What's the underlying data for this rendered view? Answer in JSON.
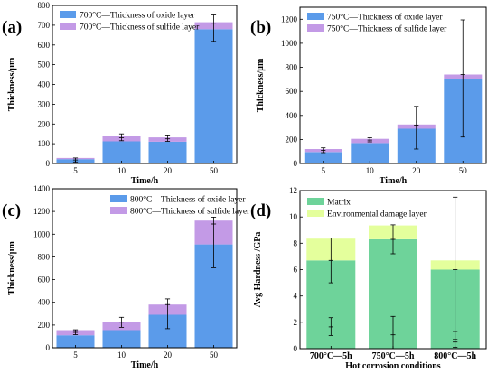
{
  "chart_data": [
    {
      "type": "bar",
      "stacked": true,
      "panel_label": "(a)",
      "categories": [
        "5",
        "10",
        "20",
        "50"
      ],
      "series": [
        {
          "name": "700°C—Thickness of oxide layer",
          "values": [
            22,
            112,
            110,
            680
          ],
          "color": "#5b9bea"
        },
        {
          "name": "700°C—Thickness of sulfide layer",
          "values": [
            6,
            25,
            22,
            35
          ],
          "color": "#c39ae6"
        }
      ],
      "error_bars": [
        {
          "center": 18,
          "low": 8,
          "high": 28
        },
        {
          "center": 130,
          "low": 115,
          "high": 150
        },
        {
          "center": 125,
          "low": 112,
          "high": 140
        },
        {
          "center": 710,
          "low": 618,
          "high": 752
        }
      ],
      "xlabel": "Time/h",
      "ylabel": "Thickness/μm",
      "ylim": [
        0,
        800
      ],
      "yticks": [
        0,
        100,
        200,
        300,
        400,
        500,
        600,
        700,
        800
      ],
      "legend": "top-left"
    },
    {
      "type": "bar",
      "stacked": true,
      "panel_label": "(b)",
      "categories": [
        "5",
        "10",
        "20",
        "50"
      ],
      "series": [
        {
          "name": "750°C—Thickness of oxide layer",
          "values": [
            95,
            170,
            290,
            700
          ],
          "color": "#5b9bea"
        },
        {
          "name": "750°C—Thickness of sulfide layer",
          "values": [
            25,
            35,
            35,
            40
          ],
          "color": "#c39ae6"
        }
      ],
      "error_bars": [
        {
          "center": 110,
          "low": 90,
          "high": 130
        },
        {
          "center": 195,
          "low": 180,
          "high": 215
        },
        {
          "center": 320,
          "low": 120,
          "high": 475
        },
        {
          "center": 740,
          "low": 220,
          "high": 1195
        }
      ],
      "xlabel": "Time/h",
      "ylabel": "Thickness/μm",
      "ylim": [
        0,
        1300
      ],
      "yticks": [
        0,
        200,
        400,
        600,
        800,
        1000,
        1200
      ],
      "legend": "top-left"
    },
    {
      "type": "bar",
      "stacked": true,
      "panel_label": "(c)",
      "categories": [
        "5",
        "10",
        "20",
        "50"
      ],
      "series": [
        {
          "name": "800°C—Thickness of oxide layer",
          "values": [
            110,
            155,
            290,
            910
          ],
          "color": "#5b9bea"
        },
        {
          "name": "800°C—Thickness of sulfide layer",
          "values": [
            45,
            75,
            90,
            210
          ],
          "color": "#c39ae6"
        }
      ],
      "error_bars": [
        {
          "center": 135,
          "low": 115,
          "high": 158
        },
        {
          "center": 225,
          "low": 180,
          "high": 268
        },
        {
          "center": 380,
          "low": 168,
          "high": 430
        },
        {
          "center": 1090,
          "low": 705,
          "high": 1150
        }
      ],
      "xlabel": "Time/h",
      "ylabel": "Thickness/μm",
      "ylim": [
        0,
        1400
      ],
      "yticks": [
        0,
        200,
        400,
        600,
        800,
        1000,
        1200,
        1400
      ],
      "legend": "top-left"
    },
    {
      "type": "bar",
      "stacked": true,
      "panel_label": "(d)",
      "categories": [
        "700°C—5h",
        "750°C—5h",
        "800°C—5h"
      ],
      "series": [
        {
          "name": "Matrix",
          "values": [
            6.7,
            8.3,
            6.0
          ],
          "color": "#6ed39a"
        },
        {
          "name": "Environmental damage layer",
          "values": [
            1.65,
            1.05,
            0.7
          ],
          "color": "#e4ff9c"
        }
      ],
      "error_bars_by_series": {
        "Matrix": [
          {
            "center": 6.7,
            "low": 5.0,
            "high": 8.4
          },
          {
            "center": 8.3,
            "low": 7.2,
            "high": 9.4
          },
          {
            "center": 6.0,
            "low": 0.5,
            "high": 11.5
          }
        ],
        "Environmental damage layer": [
          {
            "center": 1.65,
            "low": 1.0,
            "high": 2.35
          },
          {
            "center": 1.05,
            "low": 0.0,
            "high": 2.45
          },
          {
            "center": 0.7,
            "low": 0.1,
            "high": 1.3
          }
        ]
      },
      "xlabel": "Hot corrosion conditions",
      "ylabel": "Avg Hardness /GPa",
      "ylim": [
        0,
        12
      ],
      "yticks": [
        0,
        2,
        4,
        6,
        8,
        10,
        12
      ],
      "legend": "top-left"
    }
  ]
}
